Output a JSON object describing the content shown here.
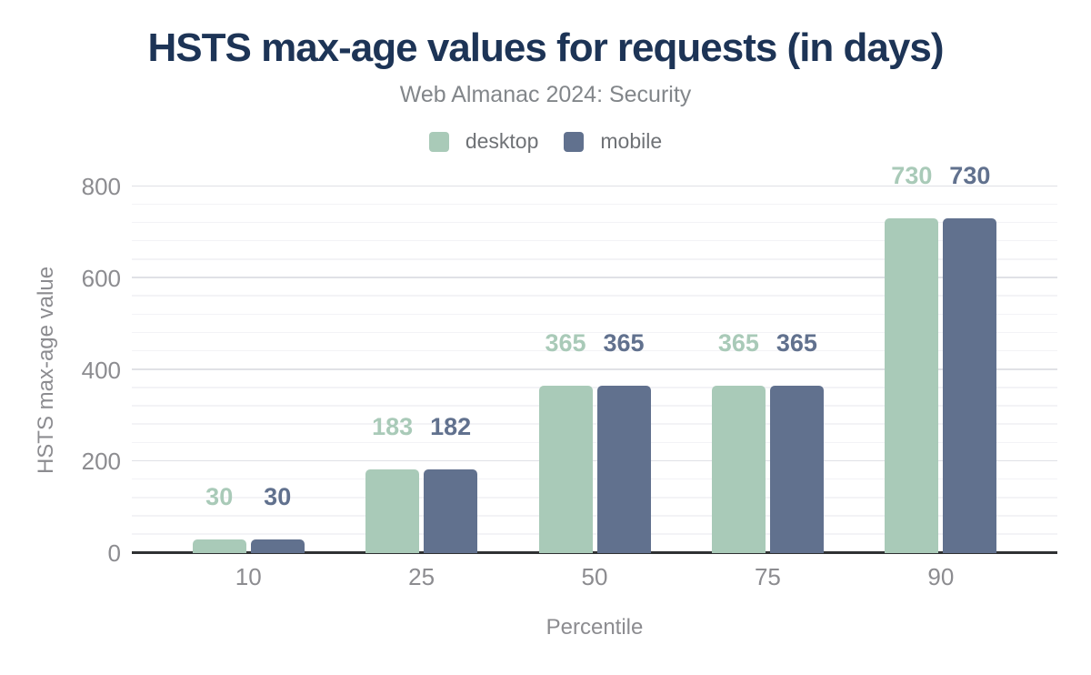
{
  "title": "HSTS max-age values for requests (in days)",
  "subtitle": "Web Almanac 2024: Security",
  "colors": {
    "background": "#ffffff",
    "title": "#1d3456",
    "subtitle_gray": "#82868a",
    "tick_gray": "#8c8c90",
    "legend_label_gray": "#6f7276",
    "desktop": "#a9cab8",
    "mobile": "#61718e",
    "axis_line": "#2f3133",
    "grid_major": "#e0e1e6",
    "grid_minor": "#f3f3f6"
  },
  "legend": {
    "items": [
      {
        "label": "desktop",
        "color": "#a9cab8"
      },
      {
        "label": "mobile",
        "color": "#61718e"
      }
    ]
  },
  "chart_data": {
    "type": "bar",
    "title": "HSTS max-age values for requests (in days)",
    "subtitle": "Web Almanac 2024: Security",
    "categories": [
      "10",
      "25",
      "50",
      "75",
      "90"
    ],
    "series": [
      {
        "name": "desktop",
        "color": "#a9cab8",
        "values": [
          30,
          183,
          365,
          365,
          730
        ]
      },
      {
        "name": "mobile",
        "color": "#61718e",
        "values": [
          30,
          182,
          365,
          365,
          730
        ]
      }
    ],
    "data_labels": {
      "desktop": [
        "30",
        "183",
        "365",
        "365",
        "730"
      ],
      "mobile": [
        "30",
        "182",
        "365",
        "365",
        "730"
      ]
    },
    "xlabel": "Percentile",
    "ylabel": "HSTS max-age value",
    "ylim": [
      0,
      800
    ],
    "yticks": [
      0,
      200,
      400,
      600,
      800
    ],
    "minor_grid_step": 40,
    "grid": "horizontal, major and minor lines",
    "legend_position": "top-center"
  }
}
